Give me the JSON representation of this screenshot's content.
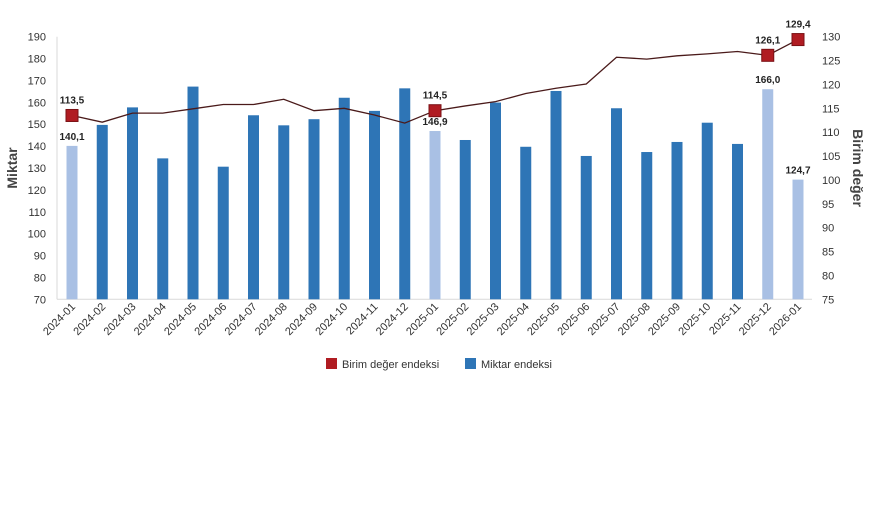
{
  "chart_data": {
    "type": "bar+line",
    "categories": [
      "2024-01",
      "2024-02",
      "2024-03",
      "2024-04",
      "2024-05",
      "2024-06",
      "2024-07",
      "2024-08",
      "2024-09",
      "2024-10",
      "2024-11",
      "2024-12",
      "2025-01",
      "2025-02",
      "2025-03",
      "2025-04",
      "2025-05",
      "2025-06",
      "2025-07",
      "2025-08",
      "2025-09",
      "2025-10",
      "2025-11",
      "2025-12",
      "2026-01"
    ],
    "ylabel_left": "Miktar",
    "ylabel_right": "Birim değer",
    "ylim_left": [
      70,
      190
    ],
    "yticks_left": [
      70,
      80,
      90,
      100,
      110,
      120,
      130,
      140,
      150,
      160,
      170,
      180,
      190
    ],
    "ylim_right": [
      75,
      130
    ],
    "yticks_right": [
      75,
      80,
      85,
      90,
      95,
      100,
      105,
      110,
      115,
      120,
      125,
      130
    ],
    "grid": false,
    "legend_position": "bottom",
    "series": [
      {
        "name": "Birim değer endeksi",
        "kind": "line",
        "axis": "right",
        "color": "#b01c22",
        "line_color": "#4a1a1a",
        "values": [
          113.5,
          112.1,
          114.0,
          114.0,
          114.9,
          115.8,
          115.8,
          116.9,
          114.5,
          115.0,
          113.6,
          111.9,
          114.5,
          115.5,
          116.4,
          118.1,
          119.2,
          120.1,
          125.7,
          125.3,
          126.0,
          126.4,
          126.9,
          126.1,
          129.4
        ],
        "markers": [
          0,
          12,
          23,
          24
        ],
        "data_labels": {
          "0": "113,5",
          "12": "114,5",
          "23": "126,1",
          "24": "129,4"
        }
      },
      {
        "name": "Miktar endeksi",
        "kind": "bar",
        "axis": "left",
        "color": "#2e75b6",
        "highlight_color": "#a9c0e4",
        "highlight": [
          0,
          12,
          23,
          24
        ],
        "values": [
          140.1,
          149.7,
          157.7,
          134.4,
          167.2,
          130.6,
          154.1,
          149.5,
          152.3,
          162.1,
          156.1,
          166.4,
          146.9,
          142.8,
          159.9,
          139.7,
          165.2,
          135.5,
          157.3,
          137.3,
          141.9,
          150.7,
          141.0,
          166.0,
          124.7
        ],
        "data_labels": {
          "0": "140,1",
          "12": "146,9",
          "23": "166,0",
          "24": "124,7"
        }
      }
    ]
  }
}
